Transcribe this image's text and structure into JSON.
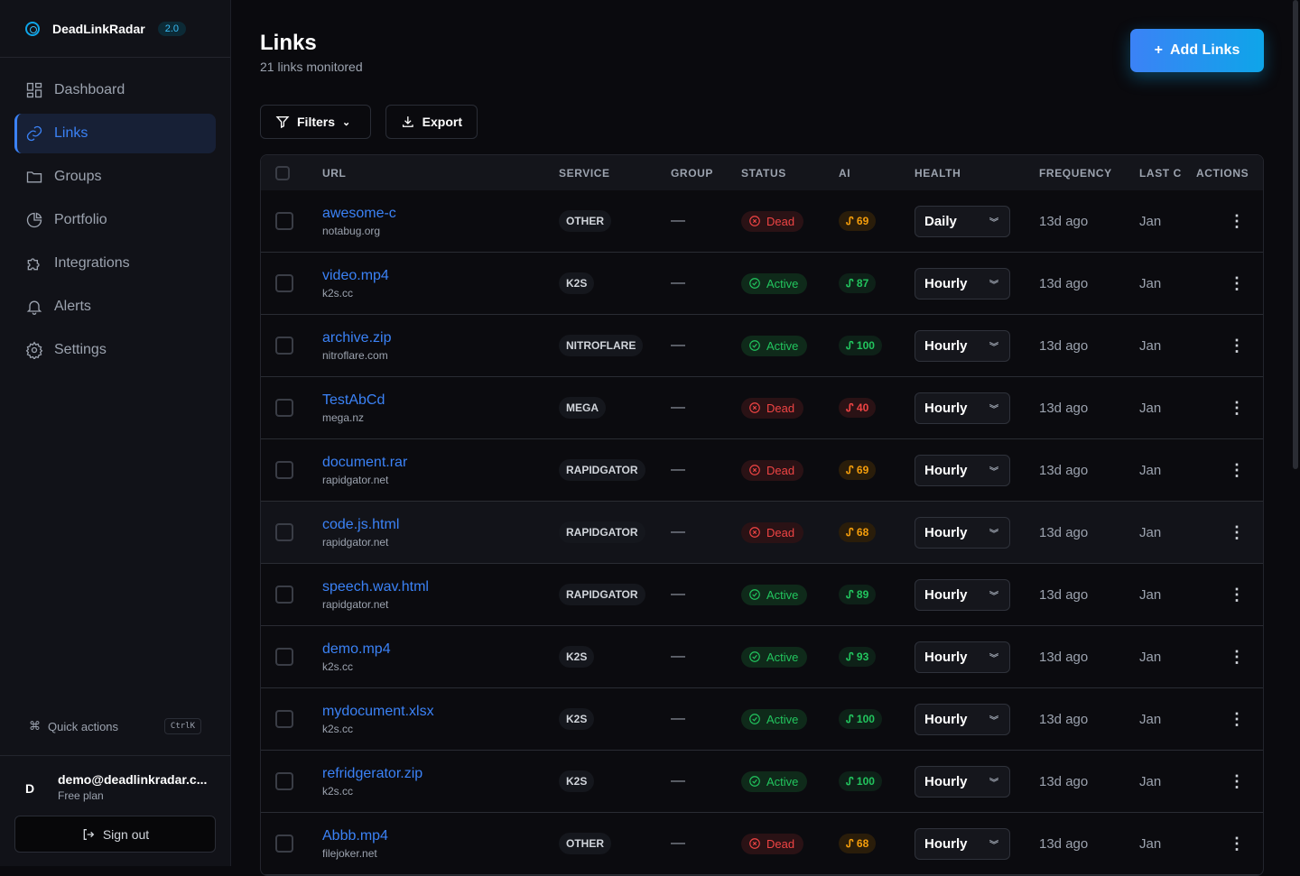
{
  "app": {
    "name": "DeadLinkRadar",
    "version": "2.0"
  },
  "sidebar": {
    "items": [
      {
        "label": "Dashboard",
        "icon": "grid-icon"
      },
      {
        "label": "Links",
        "icon": "link-icon",
        "active": true
      },
      {
        "label": "Groups",
        "icon": "folder-icon"
      },
      {
        "label": "Portfolio",
        "icon": "pie-chart-icon"
      },
      {
        "label": "Integrations",
        "icon": "puzzle-icon"
      },
      {
        "label": "Alerts",
        "icon": "bell-icon"
      },
      {
        "label": "Settings",
        "icon": "gear-icon"
      }
    ],
    "quick_actions": "Quick actions",
    "shortcut": "CtrlK",
    "user": {
      "initial": "D",
      "email": "demo@deadlinkradar.c...",
      "plan": "Free plan"
    },
    "sign_out": "Sign out"
  },
  "header": {
    "title": "Links",
    "subtitle": "21 links monitored",
    "add_label": "Add Links"
  },
  "toolbar": {
    "filters": "Filters",
    "export": "Export"
  },
  "table": {
    "columns": [
      "URL",
      "SERVICE",
      "GROUP",
      "STATUS",
      "AI",
      "HEALTH",
      "FREQUENCY",
      "LAST C",
      "ACTIONS"
    ],
    "rows": [
      {
        "name": "awesome-c",
        "domain": "notabug.org",
        "service": "OTHER",
        "group": "—",
        "status": "Dead",
        "ai": "69",
        "freq": "Daily",
        "checked": "13d ago",
        "last": "Jan"
      },
      {
        "name": "video.mp4",
        "domain": "k2s.cc",
        "service": "K2S",
        "group": "—",
        "status": "Active",
        "ai": "87",
        "freq": "Hourly",
        "checked": "13d ago",
        "last": "Jan"
      },
      {
        "name": "archive.zip",
        "domain": "nitroflare.com",
        "service": "NITROFLARE",
        "group": "—",
        "status": "Active",
        "ai": "100",
        "freq": "Hourly",
        "checked": "13d ago",
        "last": "Jan"
      },
      {
        "name": "TestAbCd",
        "domain": "mega.nz",
        "service": "MEGA",
        "group": "—",
        "status": "Dead",
        "ai": "40",
        "freq": "Hourly",
        "checked": "13d ago",
        "last": "Jan"
      },
      {
        "name": "document.rar",
        "domain": "rapidgator.net",
        "service": "RAPIDGATOR",
        "group": "—",
        "status": "Dead",
        "ai": "69",
        "freq": "Hourly",
        "checked": "13d ago",
        "last": "Jan"
      },
      {
        "name": "code.js.html",
        "domain": "rapidgator.net",
        "service": "RAPIDGATOR",
        "group": "—",
        "status": "Dead",
        "ai": "68",
        "freq": "Hourly",
        "checked": "13d ago",
        "last": "Jan"
      },
      {
        "name": "speech.wav.html",
        "domain": "rapidgator.net",
        "service": "RAPIDGATOR",
        "group": "—",
        "status": "Active",
        "ai": "89",
        "freq": "Hourly",
        "checked": "13d ago",
        "last": "Jan"
      },
      {
        "name": "demo.mp4",
        "domain": "k2s.cc",
        "service": "K2S",
        "group": "—",
        "status": "Active",
        "ai": "93",
        "freq": "Hourly",
        "checked": "13d ago",
        "last": "Jan"
      },
      {
        "name": "mydocument.xlsx",
        "domain": "k2s.cc",
        "service": "K2S",
        "group": "—",
        "status": "Active",
        "ai": "100",
        "freq": "Hourly",
        "checked": "13d ago",
        "last": "Jan"
      },
      {
        "name": "refridgerator.zip",
        "domain": "k2s.cc",
        "service": "K2S",
        "group": "—",
        "status": "Active",
        "ai": "100",
        "freq": "Hourly",
        "checked": "13d ago",
        "last": "Jan"
      },
      {
        "name": "Abbb.mp4",
        "domain": "filejoker.net",
        "service": "OTHER",
        "group": "—",
        "status": "Dead",
        "ai": "68",
        "freq": "Hourly",
        "checked": "13d ago",
        "last": "Jan"
      }
    ]
  },
  "colors": {
    "accent": "#3b82f6",
    "dead": "#ef4444",
    "active": "#22c55e",
    "warn": "#f59e0b"
  }
}
